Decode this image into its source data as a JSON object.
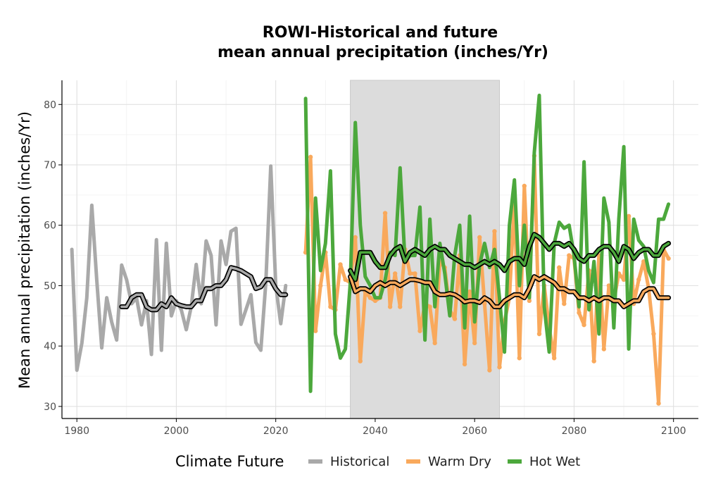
{
  "chart_data": {
    "type": "line",
    "title_line1": "ROWI-Historical and future",
    "title_line2": "mean annual precipitation (inches/Yr)",
    "ylabel": "Mean annual precipitation (inches/Yr)",
    "xlabel": "",
    "xlim": [
      1977,
      2105
    ],
    "ylim": [
      28,
      84
    ],
    "x_ticks": [
      1980,
      2000,
      2020,
      2040,
      2060,
      2080,
      2100
    ],
    "y_ticks": [
      30,
      40,
      50,
      60,
      70,
      80
    ],
    "grid": true,
    "shaded_period": [
      2035,
      2065
    ],
    "legend": {
      "title": "Climate Future",
      "position": "bottom",
      "entries": [
        "Historical",
        "Warm Dry",
        "Hot Wet"
      ]
    },
    "colors": {
      "Historical": "#a9a9a9",
      "Warm Dry": "#f9a95c",
      "Hot Wet": "#4ca83c",
      "shade": "#dcdcdc",
      "smooth_outline": "#000000"
    },
    "series": [
      {
        "name": "Historical",
        "x": [
          1979,
          1980,
          1981,
          1982,
          1983,
          1984,
          1985,
          1986,
          1987,
          1988,
          1989,
          1990,
          1991,
          1992,
          1993,
          1994,
          1995,
          1996,
          1997,
          1998,
          1999,
          2000,
          2001,
          2002,
          2003,
          2004,
          2005,
          2006,
          2007,
          2008,
          2009,
          2010,
          2011,
          2012,
          2013,
          2014,
          2015,
          2016,
          2017,
          2018,
          2019,
          2020,
          2021,
          2022
        ],
        "values": [
          56.0,
          36.0,
          40.5,
          48.0,
          63.3,
          51.0,
          39.7,
          48.0,
          44.0,
          41.0,
          53.4,
          51.0,
          47.0,
          48.0,
          43.5,
          47.5,
          38.6,
          57.6,
          39.3,
          57.0,
          45.0,
          47.5,
          46.0,
          42.7,
          46.5,
          53.5,
          47.0,
          57.4,
          55.0,
          43.5,
          57.4,
          53.5,
          59.0,
          59.5,
          43.6,
          46.0,
          48.5,
          40.6,
          39.3,
          50.5,
          69.8,
          50.0,
          43.7,
          50.0
        ]
      },
      {
        "name": "Historical smooth",
        "x": [
          1989,
          1990,
          1991,
          1992,
          1993,
          1994,
          1995,
          1996,
          1997,
          1998,
          1999,
          2000,
          2001,
          2002,
          2003,
          2004,
          2005,
          2006,
          2007,
          2008,
          2009,
          2010,
          2011,
          2012,
          2013,
          2014,
          2015,
          2016,
          2017,
          2018,
          2019,
          2020,
          2021,
          2022
        ],
        "values": [
          46.5,
          46.5,
          48.0,
          48.5,
          48.5,
          46.5,
          46.0,
          46.0,
          47.0,
          46.5,
          48.0,
          47.0,
          46.7,
          46.5,
          46.5,
          47.5,
          47.5,
          49.5,
          49.5,
          50.0,
          50.0,
          51.0,
          53.0,
          52.8,
          52.5,
          52.0,
          51.5,
          49.5,
          49.8,
          51.0,
          51.0,
          49.5,
          48.5,
          48.5
        ]
      },
      {
        "name": "Warm Dry",
        "x": [
          2026,
          2027,
          2028,
          2029,
          2030,
          2031,
          2032,
          2033,
          2034,
          2035,
          2036,
          2037,
          2038,
          2039,
          2040,
          2041,
          2042,
          2043,
          2044,
          2045,
          2046,
          2047,
          2048,
          2049,
          2050,
          2051,
          2052,
          2053,
          2054,
          2055,
          2056,
          2057,
          2058,
          2059,
          2060,
          2061,
          2062,
          2063,
          2064,
          2065,
          2066,
          2067,
          2068,
          2069,
          2070,
          2071,
          2072,
          2073,
          2074,
          2075,
          2076,
          2077,
          2078,
          2079,
          2080,
          2081,
          2082,
          2083,
          2084,
          2085,
          2086,
          2087,
          2088,
          2089,
          2090,
          2091,
          2092,
          2093,
          2094,
          2095,
          2096,
          2097,
          2098,
          2099
        ],
        "values": [
          55.5,
          71.3,
          42.5,
          50.0,
          55.5,
          46.5,
          46.0,
          53.5,
          51.0,
          50.5,
          58.0,
          37.5,
          49.0,
          48.0,
          47.5,
          48.0,
          62.0,
          46.5,
          52.0,
          46.5,
          56.0,
          52.0,
          52.0,
          42.5,
          47.0,
          46.5,
          40.5,
          54.0,
          53.0,
          46.0,
          44.5,
          55.0,
          37.0,
          49.0,
          40.5,
          58.0,
          47.0,
          36.0,
          59.0,
          36.5,
          44.0,
          48.0,
          64.0,
          38.0,
          66.5,
          47.5,
          71.5,
          42.0,
          50.0,
          43.0,
          38.0,
          53.0,
          47.0,
          55.0,
          54.5,
          45.5,
          43.5,
          52.5,
          37.5,
          55.0,
          39.5,
          50.0,
          47.5,
          52.0,
          51.0,
          61.5,
          47.0,
          51.0,
          54.0,
          49.5,
          42.0,
          30.5,
          56.0,
          54.5
        ]
      },
      {
        "name": "Warm Dry smooth",
        "x": [
          2035,
          2036,
          2037,
          2038,
          2039,
          2040,
          2041,
          2042,
          2043,
          2044,
          2045,
          2046,
          2047,
          2048,
          2049,
          2050,
          2051,
          2052,
          2053,
          2054,
          2055,
          2056,
          2057,
          2058,
          2059,
          2060,
          2061,
          2062,
          2063,
          2064,
          2065,
          2066,
          2067,
          2068,
          2069,
          2070,
          2071,
          2072,
          2073,
          2074,
          2075,
          2076,
          2077,
          2078,
          2079,
          2080,
          2081,
          2082,
          2083,
          2084,
          2085,
          2086,
          2087,
          2088,
          2089,
          2090,
          2091,
          2092,
          2093,
          2094,
          2095,
          2096,
          2097,
          2098,
          2099
        ],
        "values": [
          51.5,
          49.0,
          49.5,
          49.5,
          49.0,
          50.0,
          50.5,
          50.0,
          50.5,
          50.5,
          50.0,
          50.5,
          51.0,
          51.0,
          50.8,
          50.5,
          50.5,
          49.0,
          48.5,
          48.5,
          48.7,
          48.5,
          48.0,
          47.3,
          47.5,
          47.5,
          47.2,
          48.0,
          47.5,
          46.5,
          46.5,
          47.5,
          48.0,
          48.5,
          48.5,
          48.0,
          49.5,
          51.5,
          51.0,
          51.5,
          51.0,
          50.5,
          49.5,
          49.5,
          49.0,
          49.0,
          48.0,
          48.0,
          47.5,
          48.0,
          47.5,
          48.0,
          48.0,
          47.5,
          47.5,
          46.5,
          47.0,
          47.5,
          47.5,
          49.0,
          49.5,
          49.5,
          48.0,
          48.0,
          48.0
        ]
      },
      {
        "name": "Hot Wet",
        "x": [
          2026,
          2027,
          2028,
          2029,
          2030,
          2031,
          2032,
          2033,
          2034,
          2035,
          2036,
          2037,
          2038,
          2039,
          2040,
          2041,
          2042,
          2043,
          2044,
          2045,
          2046,
          2047,
          2048,
          2049,
          2050,
          2051,
          2052,
          2053,
          2054,
          2055,
          2056,
          2057,
          2058,
          2059,
          2060,
          2061,
          2062,
          2063,
          2064,
          2065,
          2066,
          2067,
          2068,
          2069,
          2070,
          2071,
          2072,
          2073,
          2074,
          2075,
          2076,
          2077,
          2078,
          2079,
          2080,
          2081,
          2082,
          2083,
          2084,
          2085,
          2086,
          2087,
          2088,
          2089,
          2090,
          2091,
          2092,
          2093,
          2094,
          2095,
          2096,
          2097,
          2098,
          2099
        ],
        "values": [
          81.0,
          32.5,
          64.5,
          52.5,
          57.0,
          69.0,
          42.0,
          38.0,
          39.5,
          50.5,
          77.0,
          60.0,
          51.5,
          50.0,
          48.0,
          48.0,
          51.0,
          55.5,
          55.0,
          69.5,
          54.0,
          55.0,
          55.0,
          63.0,
          41.0,
          61.0,
          46.5,
          57.0,
          52.0,
          45.0,
          55.0,
          60.0,
          43.0,
          61.5,
          44.0,
          53.5,
          57.0,
          53.0,
          56.0,
          48.0,
          39.0,
          60.0,
          67.5,
          50.0,
          60.0,
          48.0,
          72.0,
          81.5,
          46.5,
          39.0,
          57.0,
          60.5,
          59.5,
          60.0,
          55.0,
          46.5,
          70.5,
          46.0,
          54.0,
          42.0,
          64.5,
          60.5,
          43.0,
          61.0,
          73.0,
          39.5,
          61.0,
          57.5,
          56.5,
          52.5,
          50.5,
          61.0,
          61.0,
          63.5
        ]
      },
      {
        "name": "Hot Wet smooth",
        "x": [
          2035,
          2036,
          2037,
          2038,
          2039,
          2040,
          2041,
          2042,
          2043,
          2044,
          2045,
          2046,
          2047,
          2048,
          2049,
          2050,
          2051,
          2052,
          2053,
          2054,
          2055,
          2056,
          2057,
          2058,
          2059,
          2060,
          2061,
          2062,
          2063,
          2064,
          2065,
          2066,
          2067,
          2068,
          2069,
          2070,
          2071,
          2072,
          2073,
          2074,
          2075,
          2076,
          2077,
          2078,
          2079,
          2080,
          2081,
          2082,
          2083,
          2084,
          2085,
          2086,
          2087,
          2088,
          2089,
          2090,
          2091,
          2092,
          2093,
          2094,
          2095,
          2096,
          2097,
          2098,
          2099
        ],
        "values": [
          52.5,
          51.0,
          55.5,
          55.5,
          55.5,
          54.0,
          53.0,
          53.0,
          55.0,
          56.0,
          56.5,
          54.0,
          55.5,
          56.0,
          55.5,
          55.0,
          56.0,
          56.5,
          56.0,
          56.0,
          55.0,
          54.5,
          54.0,
          53.5,
          53.5,
          53.0,
          53.5,
          54.0,
          53.5,
          54.0,
          53.5,
          52.5,
          54.0,
          54.5,
          54.5,
          53.5,
          56.5,
          58.5,
          58.0,
          57.0,
          56.0,
          57.0,
          57.0,
          56.5,
          57.0,
          56.0,
          54.5,
          54.0,
          55.0,
          55.0,
          56.0,
          56.5,
          56.5,
          55.5,
          54.0,
          56.5,
          56.0,
          54.5,
          55.5,
          56.0,
          56.0,
          55.0,
          55.0,
          56.5,
          57.0
        ]
      }
    ]
  }
}
